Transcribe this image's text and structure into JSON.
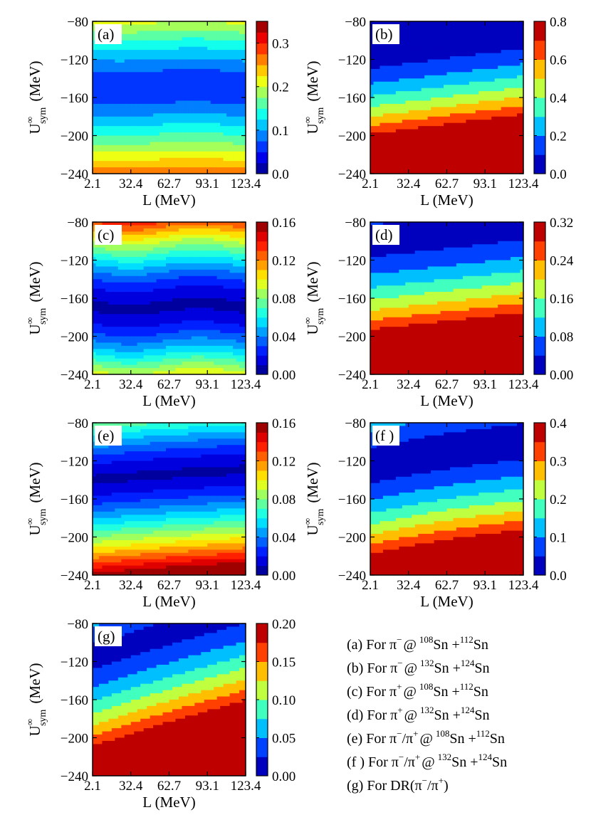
{
  "chart_data": [
    {
      "type": "heatmap",
      "id": "a",
      "panel_label": "(a)",
      "xlabel": "L (MeV)",
      "ylabel_main": "U",
      "ylabel_sup": "∞",
      "ylabel_sub": "sym",
      "ylabel_unit": "(MeV)",
      "x_ticks": [
        "2.1",
        "32.4",
        "62.7",
        "93.1",
        "123.4"
      ],
      "y_ticks": [
        "-80",
        "-120",
        "-160",
        "-200",
        "-240"
      ],
      "xlim": [
        2.1,
        123.4
      ],
      "ylim": [
        -240,
        -80
      ],
      "colorbar_ticks": [
        "0.0",
        "0.1",
        "0.2",
        "0.3"
      ],
      "colorbar_range": [
        0,
        0.35
      ],
      "levels": 14,
      "params": {
        "a": 0.05,
        "b": 0.3,
        "y0": -150,
        "t": 0,
        "w": 0.035,
        "p": 1.3,
        "v": -0.1
      }
    },
    {
      "type": "heatmap",
      "id": "b",
      "panel_label": "(b)",
      "xlabel": "L (MeV)",
      "ylabel_main": "U",
      "ylabel_sup": "∞",
      "ylabel_sub": "sym",
      "ylabel_unit": "(MeV)",
      "x_ticks": [
        "2.1",
        "32.4",
        "62.7",
        "93.1",
        "123.4"
      ],
      "y_ticks": [
        "-80",
        "-120",
        "-160",
        "-200",
        "-240"
      ],
      "xlim": [
        2.1,
        123.4
      ],
      "ylim": [
        -240,
        -80
      ],
      "colorbar_ticks": [
        "0.0",
        "0.2",
        "0.4",
        "0.6",
        "0.8"
      ],
      "colorbar_range": [
        0,
        0.8
      ],
      "levels": 8,
      "params": {
        "a": 0.02,
        "b": 0.78,
        "y0": -105,
        "t": 0.35,
        "w": 0,
        "p": 1.6,
        "v": 0
      }
    },
    {
      "type": "heatmap",
      "id": "c",
      "panel_label": "(c)",
      "xlabel": "L (MeV)",
      "ylabel_main": "U",
      "ylabel_sup": "∞",
      "ylabel_sub": "sym",
      "ylabel_unit": "(MeV)",
      "x_ticks": [
        "2.1",
        "32.4",
        "62.7",
        "93.1",
        "123.4"
      ],
      "y_ticks": [
        "-80",
        "-120",
        "-160",
        "-200",
        "-240"
      ],
      "xlim": [
        2.1,
        123.4
      ],
      "ylim": [
        -240,
        -80
      ],
      "colorbar_ticks": [
        "0.00",
        "0.04",
        "0.08",
        "0.12",
        "0.16"
      ],
      "colorbar_range": [
        0,
        0.16
      ],
      "levels": 16,
      "params": {
        "a": 0.008,
        "b": 0.155,
        "y0": -168,
        "t": 0,
        "w": 0.09,
        "p": 1.5,
        "v": 0.09
      }
    },
    {
      "type": "heatmap",
      "id": "d",
      "panel_label": "(d)",
      "xlabel": "L (MeV)",
      "ylabel_main": "U",
      "ylabel_sup": "∞",
      "ylabel_sub": "sym",
      "ylabel_unit": "(MeV)",
      "x_ticks": [
        "2.1",
        "32.4",
        "62.7",
        "93.1",
        "123.4"
      ],
      "y_ticks": [
        "-80",
        "-120",
        "-160",
        "-200",
        "-240"
      ],
      "xlim": [
        2.1,
        123.4
      ],
      "ylim": [
        -240,
        -80
      ],
      "colorbar_ticks": [
        "0.00",
        "0.08",
        "0.16",
        "0.24",
        "0.32"
      ],
      "colorbar_range": [
        0,
        0.32
      ],
      "levels": 8,
      "params": {
        "a": 0.02,
        "b": 0.31,
        "y0": -100,
        "t": 0.3,
        "w": 0,
        "p": 1.5,
        "v": 0
      }
    },
    {
      "type": "heatmap",
      "id": "e",
      "panel_label": "(e)",
      "xlabel": "L (MeV)",
      "ylabel_main": "U",
      "ylabel_sup": "∞",
      "ylabel_sub": "sym",
      "ylabel_unit": "(MeV)",
      "x_ticks": [
        "2.1",
        "32.4",
        "62.7",
        "93.1",
        "123.4"
      ],
      "y_ticks": [
        "-80",
        "-120",
        "-160",
        "-200",
        "-240"
      ],
      "xlim": [
        2.1,
        123.4
      ],
      "ylim": [
        -240,
        -80
      ],
      "colorbar_ticks": [
        "0.00",
        "0.04",
        "0.08",
        "0.12",
        "0.16"
      ],
      "colorbar_range": [
        0,
        0.16
      ],
      "levels": 16,
      "params": {
        "a": 0.008,
        "b": 0.155,
        "y0": -140,
        "t": 0.18,
        "w": 0,
        "p": 1.4,
        "v": -0.06
      }
    },
    {
      "type": "heatmap",
      "id": "f",
      "panel_label": "(f )",
      "xlabel": "L (MeV)",
      "ylabel_main": "U",
      "ylabel_sup": "∞",
      "ylabel_sub": "sym",
      "ylabel_unit": "(MeV)",
      "x_ticks": [
        "2.1",
        "32.4",
        "62.7",
        "93.1",
        "123.4"
      ],
      "y_ticks": [
        "-80",
        "-120",
        "-160",
        "-200",
        "-240"
      ],
      "xlim": [
        2.1,
        123.4
      ],
      "ylim": [
        -240,
        -80
      ],
      "colorbar_ticks": [
        "0.0",
        "0.1",
        "0.2",
        "0.3",
        "0.4"
      ],
      "colorbar_range": [
        0,
        0.4
      ],
      "levels": 8,
      "params": {
        "a": 0.02,
        "b": 0.39,
        "y0": -125,
        "t": 0.42,
        "w": 0,
        "p": 1.5,
        "v": -0.2
      }
    },
    {
      "type": "heatmap",
      "id": "g",
      "panel_label": "(g)",
      "xlabel": "L (MeV)",
      "ylabel_main": "U",
      "ylabel_sup": "∞",
      "ylabel_sub": "sym",
      "ylabel_unit": "(MeV)",
      "x_ticks": [
        "2.1",
        "32.4",
        "62.7",
        "93.1",
        "123.4"
      ],
      "y_ticks": [
        "-80",
        "-120",
        "-160",
        "-200",
        "-240"
      ],
      "xlim": [
        2.1,
        123.4
      ],
      "ylim": [
        -240,
        -80
      ],
      "colorbar_ticks": [
        "0.00",
        "0.05",
        "0.10",
        "0.15",
        "0.20"
      ],
      "colorbar_range": [
        0,
        0.2
      ],
      "levels": 8,
      "params": {
        "a": 0.015,
        "b": 0.19,
        "y0": -115,
        "t": 0.8,
        "w": 0,
        "p": 1.4,
        "v": -0.12
      }
    }
  ],
  "colormap": [
    "#00007f",
    "#0000ff",
    "#007fff",
    "#00ffff",
    "#7fff7f",
    "#ffff00",
    "#ff7f00",
    "#ff0000",
    "#7f0000"
  ],
  "legend": [
    {
      "label": "(a)",
      "text": "For π",
      "sup1": "−",
      "sep": "@",
      "sup2": "108",
      "mid": "Sn +",
      "sup3": "112",
      "tail": "Sn"
    },
    {
      "label": "(b)",
      "text": "For π",
      "sup1": "−",
      "sep": "@",
      "sup2": "132",
      "mid": "Sn +",
      "sup3": "124",
      "tail": "Sn"
    },
    {
      "label": "(c)",
      "text": "For π",
      "sup1": "+",
      "sep": "@",
      "sup2": "108",
      "mid": "Sn +",
      "sup3": "112",
      "tail": "Sn"
    },
    {
      "label": "(d)",
      "text": "For π",
      "sup1": "+",
      "sep": "@",
      "sup2": "132",
      "mid": "Sn +",
      "sup3": "124",
      "tail": "Sn"
    },
    {
      "label": "(e)",
      "text": "For π",
      "sup1": "−",
      "mid0": "/π",
      "sup1b": "+",
      "sep": "@",
      "sup2": "108",
      "mid": "Sn +",
      "sup3": "112",
      "tail": "Sn"
    },
    {
      "label": "(f )",
      "text": "For π",
      "sup1": "−",
      "mid0": "/π",
      "sup1b": "+",
      "sep": "@",
      "sup2": "132",
      "mid": "Sn +",
      "sup3": "124",
      "tail": "Sn"
    },
    {
      "label": "(g)",
      "text": "For DR(π",
      "sup1": "−",
      "mid0": "/π",
      "sup1b": "+",
      "tail": ")"
    }
  ]
}
